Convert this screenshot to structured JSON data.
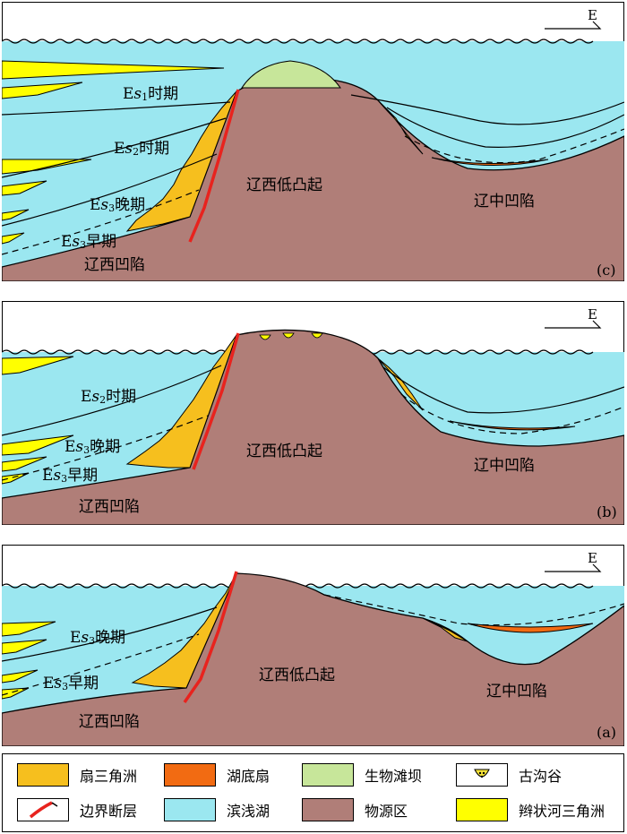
{
  "compass_label": "E",
  "panels": {
    "c": {
      "tag": "(c)",
      "uplift": "辽西低凸起",
      "west_sag": "辽西凹陷",
      "central_sag": "辽中凹陷",
      "stages": [
        {
          "pre": "E",
          "sym": "s",
          "sub": "1",
          "post": "时期"
        },
        {
          "pre": "E",
          "sym": "s",
          "sub": "2",
          "post": "时期"
        },
        {
          "pre": "E",
          "sym": "s",
          "sub": "3",
          "post": "晚期"
        },
        {
          "pre": "E",
          "sym": "s",
          "sub": "3",
          "post": "早期"
        }
      ]
    },
    "b": {
      "tag": "(b)",
      "uplift": "辽西低凸起",
      "west_sag": "辽西凹陷",
      "central_sag": "辽中凹陷",
      "stages": [
        {
          "pre": "E",
          "sym": "s",
          "sub": "2",
          "post": "时期"
        },
        {
          "pre": "E",
          "sym": "s",
          "sub": "3",
          "post": "晚期"
        },
        {
          "pre": "E",
          "sym": "s",
          "sub": "3",
          "post": "早期"
        }
      ]
    },
    "a": {
      "tag": "(a)",
      "uplift": "辽西低凸起",
      "west_sag": "辽西凹陷",
      "central_sag": "辽中凹陷",
      "stages": [
        {
          "pre": "E",
          "sym": "s",
          "sub": "3",
          "post": "晚期"
        },
        {
          "pre": "E",
          "sym": "s",
          "sub": "3",
          "post": "早期"
        }
      ]
    }
  },
  "legend": [
    {
      "label": "扇三角洲",
      "swatch": "fan-delta",
      "color": "#F6BF1E"
    },
    {
      "label": "湖底扇",
      "swatch": "sublacustrine-fan",
      "color": "#F26B12"
    },
    {
      "label": "生物滩坝",
      "swatch": "bio-beach-bar",
      "color": "#C7E69A"
    },
    {
      "label": "古沟谷",
      "swatch": "paleo-valley",
      "color": "#F6E43A"
    },
    {
      "label": "边界断层",
      "swatch": "boundary-fault",
      "color": "#E8231E"
    },
    {
      "label": "滨浅湖",
      "swatch": "shore-shallow-lake",
      "color": "#9BE7F0"
    },
    {
      "label": "物源区",
      "swatch": "provenance-area",
      "color": "#B07E78"
    },
    {
      "label": "辫状河三角洲",
      "swatch": "braided-delta",
      "color": "#FFFF00"
    }
  ],
  "colors": {
    "lake": "#9BE7F0",
    "source": "#B07E78",
    "fan_delta": "#F6BF1E",
    "braided_delta": "#FFFF00",
    "sub_fan": "#F26B12",
    "bio_bar": "#C7E69A",
    "fault": "#E8231E"
  }
}
